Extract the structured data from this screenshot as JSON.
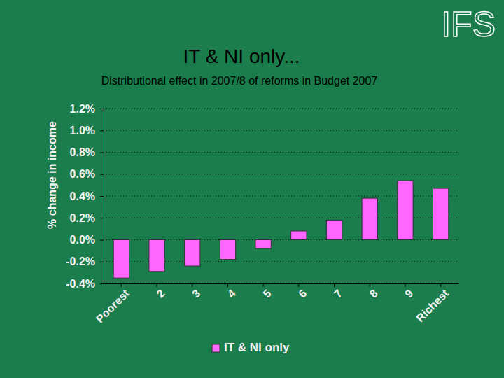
{
  "logo": "IFS",
  "chart_data": {
    "type": "bar",
    "title": "IT & NI only...",
    "subtitle": "Distributional effect in 2007/8 of reforms in Budget 2007",
    "y_label": "% change in income",
    "categories": [
      "Poorest",
      "2",
      "3",
      "4",
      "5",
      "6",
      "7",
      "8",
      "9",
      "Richest"
    ],
    "series": [
      {
        "name": "IT & NI only",
        "color": "#ff66ff",
        "values": [
          -0.35,
          -0.29,
          -0.24,
          -0.18,
          -0.08,
          0.08,
          0.18,
          0.38,
          0.54,
          0.47
        ]
      }
    ],
    "ylim": [
      -0.4,
      1.2
    ],
    "yticks": [
      {
        "value": -0.4,
        "label": "-0.4%"
      },
      {
        "value": -0.2,
        "label": "-0.2%"
      },
      {
        "value": 0,
        "label": "0.0%"
      },
      {
        "value": 0.2,
        "label": "0.2%"
      },
      {
        "value": 0.4,
        "label": "0.4%"
      },
      {
        "value": 0.6,
        "label": "0.6%"
      },
      {
        "value": 0.8,
        "label": "0.8%"
      },
      {
        "value": 1.0,
        "label": "1.0%"
      },
      {
        "value": 1.2,
        "label": "1.2%"
      }
    ],
    "grid": true,
    "legend": "bottom"
  }
}
